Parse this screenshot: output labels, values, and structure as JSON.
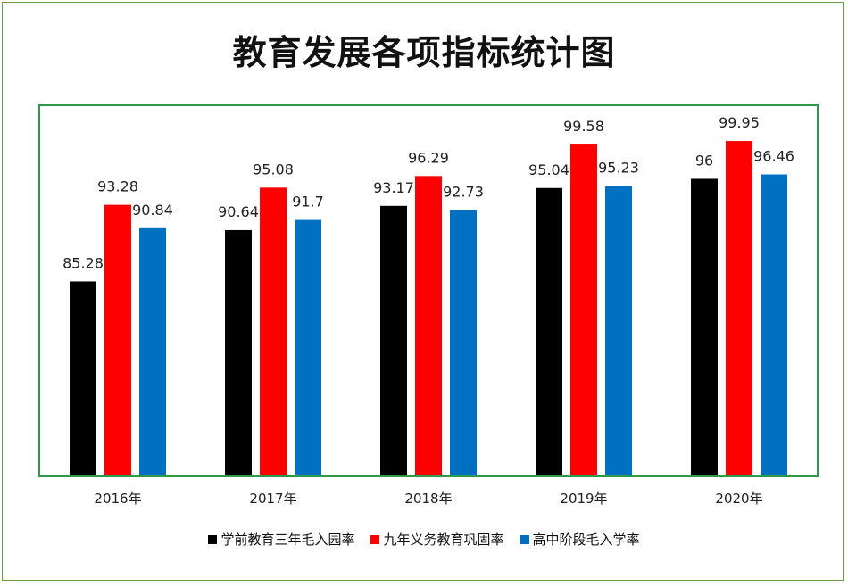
{
  "chart_data": {
    "type": "bar",
    "title": "教育发展各项指标统计图",
    "categories": [
      "2016年",
      "2017年",
      "2018年",
      "2019年",
      "2020年"
    ],
    "series": [
      {
        "name": "学前教育三年毛入园率",
        "color": "#000000",
        "values": [
          85.28,
          90.64,
          93.17,
          95.04,
          96
        ]
      },
      {
        "name": "九年义务教育巩固率",
        "color": "#ff0000",
        "values": [
          93.28,
          95.08,
          96.29,
          99.58,
          99.95
        ]
      },
      {
        "name": "高中阶段毛入学率",
        "color": "#0070c0",
        "values": [
          90.84,
          91.7,
          92.73,
          95.23,
          96.46
        ]
      }
    ],
    "data_labels": [
      [
        "85.28",
        "90.64",
        "93.17",
        "95.04",
        "96"
      ],
      [
        "93.28",
        "95.08",
        "96.29",
        "99.58",
        "99.95"
      ],
      [
        "90.84",
        "91.7",
        "92.73",
        "95.23",
        "96.46"
      ]
    ],
    "xlabel": "",
    "ylabel": "",
    "ylim": [
      65,
      103.5
    ],
    "grid": false,
    "legend_position": "bottom"
  }
}
